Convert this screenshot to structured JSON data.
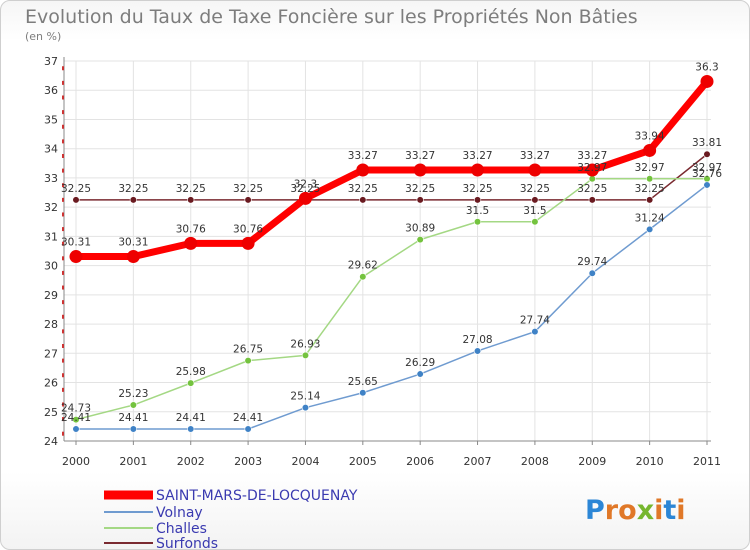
{
  "header": {
    "title": "Evolution du Taux de Taxe Foncière sur les Propriétés Non Bâties",
    "unit": "(en %)"
  },
  "logo": {
    "letters": [
      "P",
      "r",
      "o",
      "x",
      "i",
      "t",
      "i"
    ],
    "colors": [
      "#2c86d6",
      "#e07828",
      "#e07828",
      "#76b62e",
      "#e07828",
      "#2c86d6",
      "#e07828"
    ]
  },
  "chart_data": {
    "type": "line",
    "title": "Evolution du Taux de Taxe Foncière sur les Propriétés Non Bâties",
    "ylabel": "(en %)",
    "xlabel": "",
    "x": [
      "2000",
      "2001",
      "2002",
      "2003",
      "2004",
      "2005",
      "2006",
      "2007",
      "2008",
      "2009",
      "2010",
      "2011"
    ],
    "ylim": [
      24,
      37
    ],
    "yticks": [
      "24",
      "25",
      "26",
      "27",
      "28",
      "29",
      "30",
      "31",
      "32",
      "33",
      "34",
      "35",
      "36",
      "37"
    ],
    "series": [
      {
        "name": "SAINT-MARS-DE-LOCQUENAY",
        "color": "#ff0000",
        "marker": "#ee0000",
        "values": [
          30.31,
          30.31,
          30.76,
          30.76,
          32.3,
          33.27,
          33.27,
          33.27,
          33.27,
          33.27,
          33.94,
          36.3
        ],
        "labels": [
          "30.31",
          "30.31",
          "30.76",
          "30.76",
          "32.3",
          "33.27",
          "33.27",
          "33.27",
          "33.27",
          "33.27",
          "33.94",
          "36.3"
        ]
      },
      {
        "name": "Volnay",
        "color": "#6f9bd0",
        "marker": "#3f82c6",
        "values": [
          24.41,
          24.41,
          24.41,
          24.41,
          25.14,
          25.65,
          26.29,
          27.08,
          27.74,
          29.74,
          31.24,
          32.76
        ],
        "labels": [
          "24.41",
          "24.41",
          "24.41",
          "24.41",
          "25.14",
          "25.65",
          "26.29",
          "27.08",
          "27.74",
          "29.74",
          "31.24",
          "32.76"
        ]
      },
      {
        "name": "Challes",
        "color": "#a4d884",
        "marker": "#74c33e",
        "values": [
          24.73,
          25.23,
          25.98,
          26.75,
          26.93,
          29.62,
          30.89,
          31.5,
          31.5,
          32.97,
          32.97,
          32.97
        ],
        "labels": [
          "24.73",
          "25.23",
          "25.98",
          "26.75",
          "26.93",
          "29.62",
          "30.89",
          "31.5",
          "31.5",
          "32.97",
          "32.97",
          "32.97"
        ]
      },
      {
        "name": "Surfonds",
        "color": "#7a2a30",
        "marker": "#6a1a20",
        "values": [
          32.25,
          32.25,
          32.25,
          32.25,
          32.25,
          32.25,
          32.25,
          32.25,
          32.25,
          32.25,
          32.25,
          33.81
        ],
        "labels": [
          "32.25",
          "32.25",
          "32.25",
          "32.25",
          "32.25",
          "32.25",
          "32.25",
          "32.25",
          "32.25",
          "32.25",
          "32.25",
          "33.81"
        ]
      }
    ]
  }
}
